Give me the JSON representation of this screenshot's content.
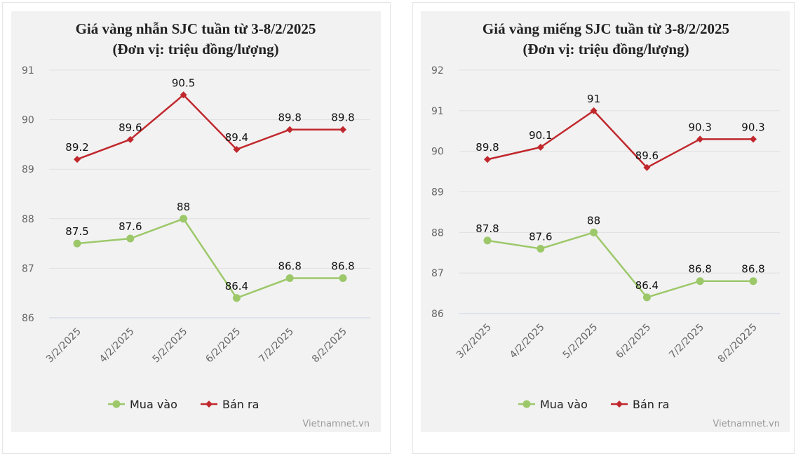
{
  "chart_data": [
    {
      "type": "line",
      "title": [
        "Giá vàng nhẫn SJC tuần từ 3-8/2/2025",
        "(Đơn vị: triệu đồng/lượng)"
      ],
      "categories": [
        "3/2/2025",
        "4/2/2025",
        "5/2/2025",
        "6/2/2025",
        "7/2/2025",
        "8/2/2025"
      ],
      "series": [
        {
          "name": "Mua vào",
          "values": [
            87.5,
            87.6,
            88,
            86.4,
            86.8,
            86.8
          ],
          "color": "#9dc86a",
          "marker": "circle"
        },
        {
          "name": "Bán ra",
          "values": [
            89.2,
            89.6,
            90.5,
            89.4,
            89.8,
            89.8
          ],
          "color": "#c0282d",
          "marker": "diamond"
        }
      ],
      "ylim": [
        86,
        91
      ],
      "yticks": [
        86,
        87,
        88,
        89,
        90,
        91
      ],
      "grid": true,
      "legend": "bottom",
      "watermark": "Vietnamnet.vn"
    },
    {
      "type": "line",
      "title": [
        "Giá vàng miếng SJC tuần từ 3-8/2/2025",
        "(Đơn vị: triệu đồng/lượng)"
      ],
      "categories": [
        "3/2/2025",
        "4/2/2025",
        "5/2/2025",
        "6/2/2025",
        "7/2/2025",
        "8/2/20225"
      ],
      "series": [
        {
          "name": "Mua vào",
          "values": [
            87.8,
            87.6,
            88,
            86.4,
            86.8,
            86.8
          ],
          "color": "#9dc86a",
          "marker": "circle"
        },
        {
          "name": "Bán ra",
          "values": [
            89.8,
            90.1,
            91,
            89.6,
            90.3,
            90.3
          ],
          "color": "#c0282d",
          "marker": "diamond"
        }
      ],
      "ylim": [
        86,
        92
      ],
      "yticks": [
        86,
        87,
        88,
        89,
        90,
        91,
        92
      ],
      "grid": true,
      "legend": "bottom",
      "watermark": "Vietnamnet.vn"
    }
  ]
}
